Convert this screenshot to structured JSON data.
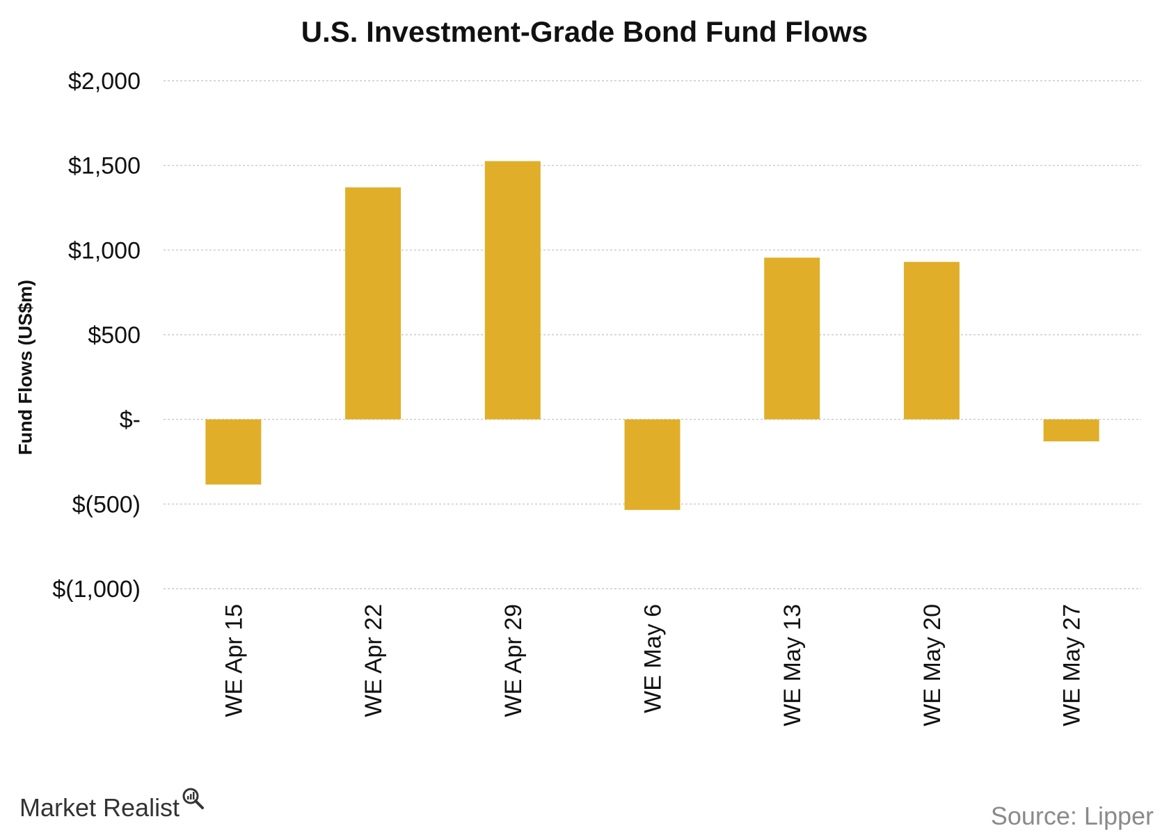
{
  "chart_data": {
    "type": "bar",
    "title": "U.S. Investment-Grade Bond Fund Flows",
    "xlabel": "",
    "ylabel": "Fund Flows (US$m)",
    "categories": [
      "WE Apr 15",
      "WE Apr 22",
      "WE Apr 29",
      "WE May 6",
      "WE May 13",
      "WE May 20",
      "WE May 27"
    ],
    "values": [
      -385,
      1370,
      1525,
      -535,
      955,
      930,
      -130
    ],
    "ylim": [
      -1000,
      2000
    ],
    "yticks": [
      2000,
      1500,
      1000,
      500,
      0,
      -500,
      -1000
    ],
    "ytick_labels": [
      "$2,000",
      "$1,500",
      "$1,000",
      "$500",
      "$-",
      "$(500)",
      "$(1,000)"
    ],
    "grid": true,
    "bar_color": "#E0AE28",
    "grid_color": "#BFBFBF"
  },
  "footer": {
    "brand": "Market Realist",
    "brand_icon": "magnifier-chart-icon",
    "source": "Source: Lipper"
  }
}
